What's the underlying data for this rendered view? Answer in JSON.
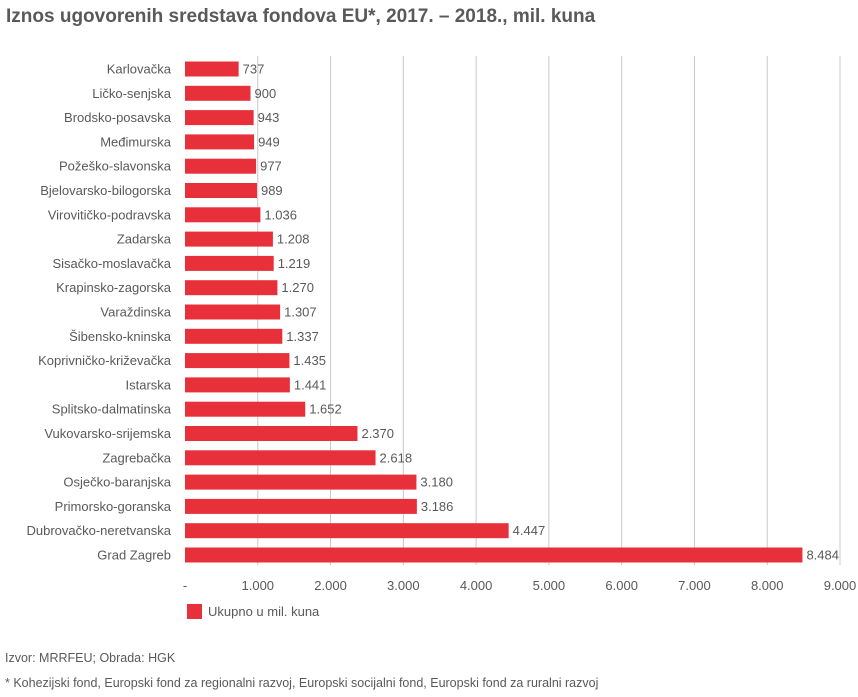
{
  "title": "Iznos ugovorenih sredstava fondova EU*, 2017. – 2018., mil. kuna",
  "legend_label": "Ukupno u mil. kuna",
  "source": "Izvor: MRRFEU; Obrada: HGK",
  "footnote": "* Kohezijski fond, Europski fond za regionalni razvoj, Europski socijalni fond, Europski fond za ruralni razvoj",
  "colors": {
    "bar": "#e8303a",
    "grid": "#c8c8c8",
    "text": "#595959"
  },
  "chart_data": {
    "type": "bar",
    "orientation": "horizontal",
    "categories": [
      "Karlovačka",
      "Ličko-senjska",
      "Brodsko-posavska",
      "Međimurska",
      "Požeško-slavonska",
      "Bjelovarsko-bilogorska",
      "Virovitičko-podravska",
      "Zadarska",
      "Sisačko-moslavačka",
      "Krapinsko-zagorska",
      "Varaždinska",
      "Šibensko-kninska",
      "Koprivničko-križevačka",
      "Istarska",
      "Splitsko-dalmatinska",
      "Vukovarsko-srijemska",
      "Zagrebačka",
      "Osječko-baranjska",
      "Primorsko-goranska",
      "Dubrovačko-neretvanska",
      "Grad Zagreb"
    ],
    "values": [
      737,
      900,
      943,
      949,
      977,
      989,
      1036,
      1208,
      1219,
      1270,
      1307,
      1337,
      1435,
      1441,
      1652,
      2370,
      2618,
      3180,
      3186,
      4447,
      8484
    ],
    "value_labels": [
      "737",
      "900",
      "943",
      "949",
      "977",
      "989",
      "1.036",
      "1.208",
      "1.219",
      "1.270",
      "1.307",
      "1.337",
      "1.435",
      "1.441",
      "1.652",
      "2.370",
      "2.618",
      "3.180",
      "3.186",
      "4.447",
      "8.484"
    ],
    "series": [
      {
        "name": "Ukupno u mil. kuna"
      }
    ],
    "xlim": [
      0,
      9000
    ],
    "x_ticks": [
      0,
      1000,
      2000,
      3000,
      4000,
      5000,
      6000,
      7000,
      8000,
      9000
    ],
    "x_tick_labels": [
      "-",
      "1.000",
      "2.000",
      "3.000",
      "4.000",
      "5.000",
      "6.000",
      "7.000",
      "8.000",
      "9.000"
    ],
    "grid": "vertical",
    "legend_position": "bottom-left",
    "title": "Iznos ugovorenih sredstava fondova EU*, 2017. – 2018., mil. kuna",
    "xlabel": "",
    "ylabel": ""
  }
}
